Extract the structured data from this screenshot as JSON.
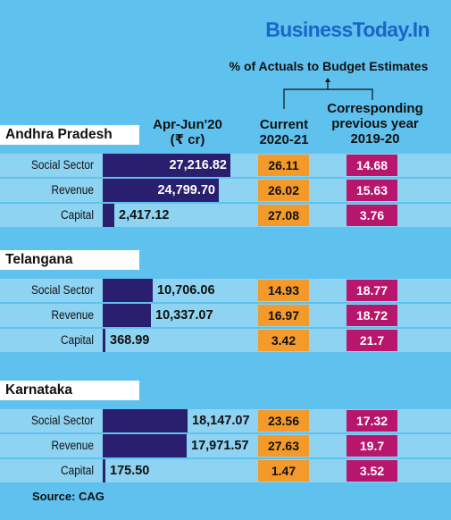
{
  "brand": "BusinessToday.In",
  "subtitle": "% of Actuals to Budget Estimates",
  "headers": {
    "amount_line1": "Apr-Jun'20",
    "amount_line2": "(₹ cr)",
    "current_line1": "Current",
    "current_line2": "2020-21",
    "prev_line1": "Corresponding",
    "prev_line2": "previous year",
    "prev_line3": "2019-20"
  },
  "source": "Source: CAG",
  "colors": {
    "background": "#5fc1ee",
    "row_band": "#8ed3f2",
    "amount_bar": "#2a1f6e",
    "current_box": "#f39a2a",
    "previous_box": "#b8166c",
    "brand": "#1a66c8"
  },
  "chart_data": {
    "type": "table",
    "title": "% of Actuals to Budget Estimates",
    "columns": [
      "Apr-Jun'20 (₹ cr)",
      "Current 2020-21",
      "Corresponding previous year 2019-20"
    ],
    "states": [
      {
        "name": "Andhra Pradesh",
        "rows": [
          {
            "category": "Social Sector",
            "amount": 27216.82,
            "amount_label": "27,216.82",
            "current": "26.11",
            "previous": "14.68"
          },
          {
            "category": "Revenue",
            "amount": 24799.7,
            "amount_label": "24,799.70",
            "current": "26.02",
            "previous": "15.63"
          },
          {
            "category": "Capital",
            "amount": 2417.12,
            "amount_label": "2,417.12",
            "current": "27.08",
            "previous": "3.76"
          }
        ]
      },
      {
        "name": "Telangana",
        "rows": [
          {
            "category": "Social Sector",
            "amount": 10706.06,
            "amount_label": "10,706.06",
            "current": "14.93",
            "previous": "18.77"
          },
          {
            "category": "Revenue",
            "amount": 10337.07,
            "amount_label": "10,337.07",
            "current": "16.97",
            "previous": "18.72"
          },
          {
            "category": "Capital",
            "amount": 368.99,
            "amount_label": "368.99",
            "current": "3.42",
            "previous": "21.7"
          }
        ]
      },
      {
        "name": "Karnataka",
        "rows": [
          {
            "category": "Social Sector",
            "amount": 18147.07,
            "amount_label": "18,147.07",
            "current": "23.56",
            "previous": "17.32"
          },
          {
            "category": "Revenue",
            "amount": 17971.57,
            "amount_label": "17,971.57",
            "current": "27.63",
            "previous": "19.7"
          },
          {
            "category": "Capital",
            "amount": 175.5,
            "amount_label": "175.50",
            "current": "1.47",
            "previous": "3.52"
          }
        ]
      }
    ]
  }
}
